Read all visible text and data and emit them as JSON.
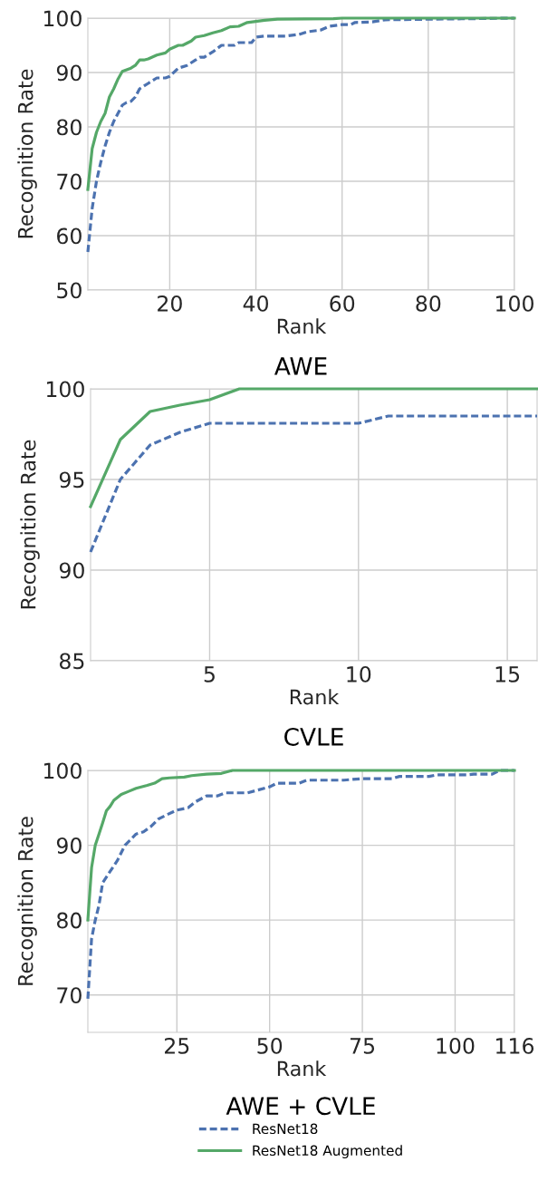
{
  "chart_data": [
    {
      "type": "line",
      "title": "AWE",
      "xlabel": "Rank",
      "ylabel": "Recognition Rate",
      "xlim": [
        1,
        100
      ],
      "xticks": [
        20,
        40,
        60,
        80,
        100
      ],
      "ylim": [
        50,
        100
      ],
      "yticks": [
        50,
        60,
        70,
        80,
        90,
        100
      ],
      "grid": true,
      "series": [
        {
          "color": "#4c72b0",
          "line_style": "dashed",
          "x": [
            1,
            2,
            3,
            4,
            5,
            6,
            7,
            8,
            9,
            10,
            11,
            12,
            13,
            15,
            17,
            19,
            20,
            22,
            24,
            26,
            27,
            28,
            30,
            32,
            35,
            36,
            39,
            40,
            42,
            47,
            50,
            52,
            55,
            57,
            60,
            62,
            63,
            67,
            70,
            100
          ],
          "values": [
            57,
            65,
            70,
            73.5,
            76.5,
            79,
            81,
            82.5,
            84,
            84.5,
            84.7,
            85.5,
            87,
            88,
            89,
            89,
            89.3,
            90.8,
            91.3,
            92.3,
            92.8,
            92.8,
            93.8,
            95,
            95,
            95.5,
            95.5,
            96.5,
            96.7,
            96.7,
            97,
            97.5,
            97.8,
            98.5,
            98.8,
            98.8,
            99.2,
            99.3,
            99.7,
            100
          ]
        },
        {
          "color": "#55a868",
          "line_style": "solid",
          "x": [
            1,
            2,
            3,
            4,
            5,
            6,
            7,
            8,
            9,
            10,
            11,
            12,
            13,
            14,
            15,
            17,
            19,
            20,
            22,
            23,
            25,
            26,
            28,
            30,
            32,
            34,
            36,
            38,
            40,
            42,
            45,
            58,
            60,
            100
          ],
          "values": [
            68.5,
            76,
            79,
            81,
            82.5,
            85.5,
            87,
            88.8,
            90.2,
            90.5,
            90.8,
            91.3,
            92.3,
            92.3,
            92.5,
            93.2,
            93.6,
            94.3,
            95,
            95,
            95.8,
            96.5,
            96.8,
            97.3,
            97.7,
            98.4,
            98.5,
            99.2,
            99.4,
            99.6,
            99.8,
            99.9,
            100,
            100
          ]
        }
      ]
    },
    {
      "type": "line",
      "title": "CVLE",
      "xlabel": "Rank",
      "ylabel": "Recognition Rate",
      "xlim": [
        1,
        16
      ],
      "xticks": [
        5,
        10,
        15
      ],
      "ylim": [
        85,
        100
      ],
      "yticks": [
        85,
        90,
        95,
        100
      ],
      "grid": true,
      "series": [
        {
          "color": "#4c72b0",
          "line_style": "dashed",
          "x": [
            1,
            2,
            3,
            4,
            5,
            6,
            7,
            8,
            9,
            10,
            11,
            12,
            13,
            14,
            15,
            16
          ],
          "values": [
            91,
            95,
            96.9,
            97.6,
            98.1,
            98.1,
            98.1,
            98.1,
            98.1,
            98.1,
            98.5,
            98.5,
            98.5,
            98.5,
            98.5,
            98.5
          ]
        },
        {
          "color": "#55a868",
          "line_style": "solid",
          "x": [
            1,
            2,
            3,
            4,
            5,
            6,
            7,
            8,
            9,
            10,
            11,
            12,
            13,
            14,
            15,
            16
          ],
          "values": [
            93.5,
            97.2,
            98.75,
            99.1,
            99.4,
            100,
            100,
            100,
            100,
            100,
            100,
            100,
            100,
            100,
            100,
            100
          ]
        }
      ]
    },
    {
      "type": "line",
      "title": "AWE + CVLE",
      "xlabel": "Rank",
      "ylabel": "Recognition Rate",
      "xlim": [
        1,
        116
      ],
      "xticks": [
        25,
        50,
        75,
        100,
        116
      ],
      "ylim": [
        65,
        100
      ],
      "yticks": [
        70,
        80,
        90,
        100
      ],
      "grid": true,
      "legend": "bottom",
      "series": [
        {
          "name": "ResNet18",
          "color": "#4c72b0",
          "line_style": "dashed",
          "x": [
            1,
            2,
            3,
            4,
            5,
            7,
            9,
            11,
            14,
            16,
            18,
            20,
            22,
            25,
            28,
            30,
            33,
            36,
            38,
            44,
            50,
            52,
            58,
            60,
            70,
            75,
            83,
            85,
            93,
            95,
            103,
            105,
            110,
            112,
            116
          ],
          "values": [
            69.5,
            77.5,
            80,
            82,
            85,
            86.5,
            88,
            90,
            91.5,
            91.8,
            92.5,
            93.5,
            94,
            94.7,
            95,
            95.8,
            96.6,
            96.6,
            97,
            97,
            97.8,
            98.3,
            98.3,
            98.7,
            98.7,
            98.9,
            98.9,
            99.2,
            99.2,
            99.4,
            99.4,
            99.5,
            99.5,
            100,
            100
          ]
        },
        {
          "name": "ResNet18 Augmented",
          "color": "#55a868",
          "line_style": "solid",
          "x": [
            1,
            2,
            3,
            4,
            5,
            6,
            7,
            8,
            10,
            12,
            14,
            17,
            19,
            21,
            23,
            27,
            29,
            33,
            37,
            40,
            116
          ],
          "values": [
            80,
            87,
            90,
            91.5,
            93,
            94.6,
            95.2,
            96,
            96.8,
            97.2,
            97.6,
            98,
            98.3,
            98.9,
            99,
            99.1,
            99.3,
            99.5,
            99.6,
            100,
            100
          ]
        }
      ]
    }
  ]
}
